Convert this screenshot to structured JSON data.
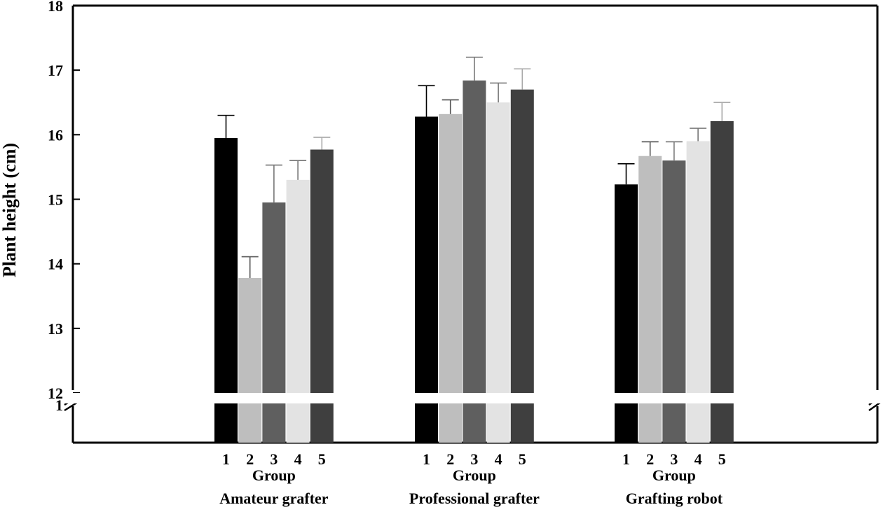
{
  "chart_data": {
    "type": "bar",
    "title": "",
    "ylabel": "Plant height (cm)",
    "ylim": [
      12,
      18
    ],
    "yticks": [
      "12",
      "13",
      "14",
      "15",
      "16",
      "17",
      "18"
    ],
    "axis_break": true,
    "axis_break_label": "1",
    "grid": false,
    "legend": "none",
    "group_axis_label": "Group",
    "groups": [
      {
        "name": "Amateur grafter",
        "categories": [
          "1",
          "2",
          "3",
          "4",
          "5"
        ],
        "values": [
          15.95,
          13.78,
          14.95,
          15.3,
          15.77
        ],
        "errors": [
          0.35,
          0.33,
          0.58,
          0.3,
          0.19
        ]
      },
      {
        "name": "Professional grafter",
        "categories": [
          "1",
          "2",
          "3",
          "4",
          "5"
        ],
        "values": [
          16.28,
          16.32,
          16.84,
          16.5,
          16.7
        ],
        "errors": [
          0.48,
          0.22,
          0.36,
          0.3,
          0.32
        ]
      },
      {
        "name": "Grafting robot",
        "categories": [
          "1",
          "2",
          "3",
          "4",
          "5"
        ],
        "values": [
          15.23,
          15.67,
          15.6,
          15.9,
          16.21
        ],
        "errors": [
          0.32,
          0.22,
          0.29,
          0.2,
          0.29
        ]
      }
    ],
    "bar_colors": [
      "#000000",
      "#bebebe",
      "#5f5f5f",
      "#e3e3e3",
      "#3f3f3f"
    ],
    "errorbar_colors": [
      "#000000",
      "#555555",
      "#777777",
      "#777777",
      "#aaaaaa"
    ]
  }
}
